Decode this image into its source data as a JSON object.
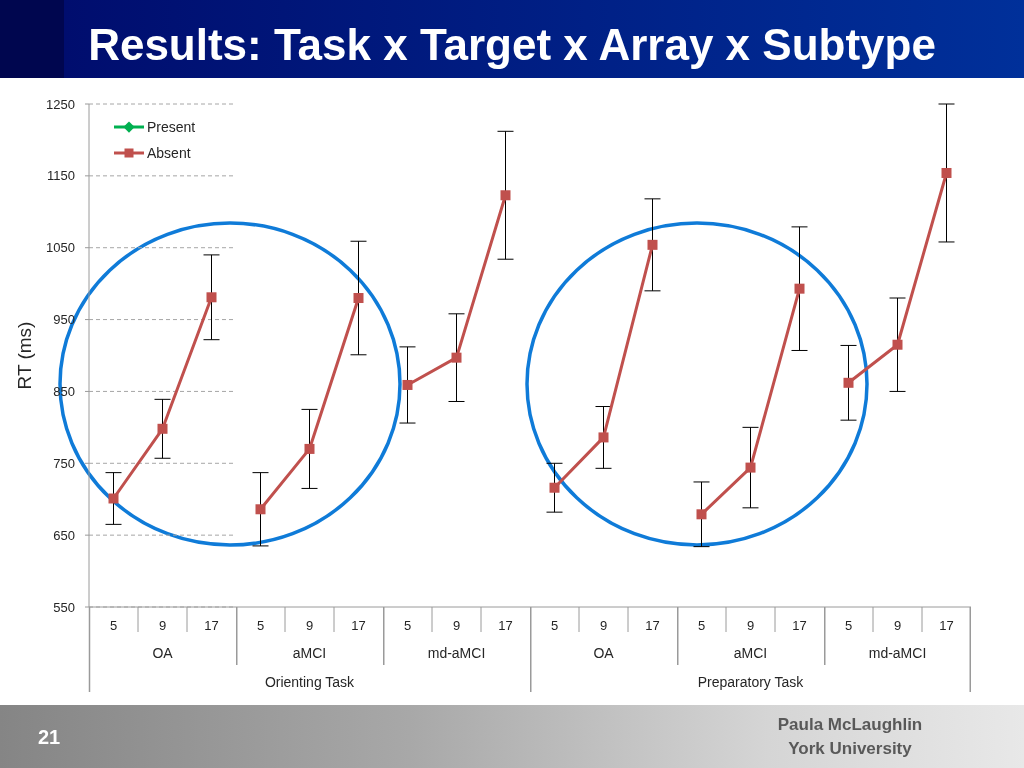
{
  "chart_data": [
    {
      "type": "line",
      "title": "Results: Task x Target x Array x Subtype",
      "ylabel": "RT (ms)",
      "xlabel": "OA",
      "categories": [
        "5",
        "9",
        "17"
      ],
      "series": [
        {
          "name": "Present",
          "color": "#00b050",
          "marker": "diamond",
          "values": [
            null,
            null,
            null
          ]
        },
        {
          "name": "Absent",
          "color": "#c0504d",
          "values": [
            701,
            798,
            981
          ],
          "errors": [
            36,
            41,
            59
          ]
        }
      ],
      "ylim": [
        550,
        1250
      ],
      "yticks": [
        550,
        650,
        750,
        850,
        950,
        1050,
        1150,
        1250
      ],
      "grid": "y",
      "legend": "top left",
      "marker": "square",
      "annotations": [
        "21",
        "Paula McLaughlin",
        "York University"
      ]
    },
    {
      "type": "line",
      "xlabel": "aMCI",
      "categories": [
        "5",
        "9",
        "17"
      ],
      "series": [
        {
          "color": "#c0504d",
          "values": [
            686,
            770,
            980
          ],
          "errors": [
            51,
            55,
            79
          ]
        }
      ],
      "ylim": [
        550,
        1250
      ],
      "yticks": [
        550,
        650,
        750,
        850,
        950,
        1050,
        1150,
        1250
      ],
      "grid": "y",
      "marker": "square",
      "tick_labels": "x",
      "annotations": [
        "Orienting Task"
      ]
    },
    {
      "type": "line",
      "xlabel": "md-aMCI",
      "categories": [
        "5",
        "9",
        "17"
      ],
      "series": [
        {
          "color": "#c0504d",
          "values": [
            859,
            897,
            1123
          ],
          "errors": [
            53,
            61,
            89
          ]
        }
      ],
      "ylim": [
        550,
        1250
      ],
      "yticks": [
        550,
        650,
        750,
        850,
        950,
        1050,
        1150,
        1250
      ],
      "grid": "y",
      "marker": "square",
      "tick_labels": "x"
    },
    {
      "type": "line",
      "xlabel": "OA",
      "categories": [
        "5",
        "9",
        "17"
      ],
      "series": [
        {
          "color": "#c0504d",
          "values": [
            716,
            786,
            1054
          ],
          "errors": [
            34,
            43,
            64
          ]
        }
      ],
      "ylim": [
        550,
        1250
      ],
      "yticks": [
        550,
        650,
        750,
        850,
        950,
        1050,
        1150,
        1250
      ],
      "grid": "y",
      "marker": "square",
      "tick_labels": "x"
    },
    {
      "type": "line",
      "xlabel": "aMCI",
      "categories": [
        "5",
        "9",
        "17"
      ],
      "series": [
        {
          "color": "#c0504d",
          "values": [
            679,
            744,
            993
          ],
          "errors": [
            45,
            56,
            86
          ]
        }
      ],
      "ylim": [
        550,
        1250
      ],
      "yticks": [
        550,
        650,
        750,
        850,
        950,
        1050,
        1150,
        1250
      ],
      "grid": "y",
      "marker": "square",
      "tick_labels": "x",
      "annotations": [
        "Preparatory Task"
      ]
    },
    {
      "type": "line",
      "xlabel": "md-aMCI",
      "categories": [
        "5",
        "9",
        "17"
      ],
      "series": [
        {
          "color": "#c0504d",
          "values": [
            862,
            915,
            1154
          ],
          "errors": [
            52,
            65,
            96
          ]
        }
      ],
      "ylim": [
        550,
        1250
      ],
      "yticks": [
        550,
        650,
        750,
        850,
        950,
        1050,
        1150,
        1250
      ],
      "grid": "y",
      "marker": "square",
      "tick_labels": "x"
    }
  ]
}
